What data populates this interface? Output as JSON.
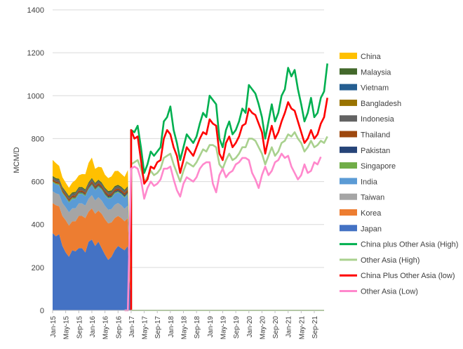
{
  "chart_data": {
    "type": "area+line",
    "title": "",
    "xlabel": "",
    "ylabel": "MCM/D",
    "ylim": [
      0,
      1400
    ],
    "yticks": [
      0,
      200,
      400,
      600,
      800,
      1000,
      1200,
      1400
    ],
    "xtick_labels": [
      "Jan-15",
      "May-15",
      "Sep-15",
      "Jan-16",
      "May-16",
      "Sep-16",
      "Jan-17",
      "May-17",
      "Sep-17",
      "Jan-18",
      "May-18",
      "Sep-18",
      "Jan-19",
      "May-19",
      "Sep-19",
      "Jan-20",
      "May-20",
      "Sep-20",
      "Jan-21",
      "May-21",
      "Sep-21"
    ],
    "area_months": 24,
    "line_months": 84,
    "stacked_areas": [
      {
        "name": "Japan",
        "color": "#4472c4",
        "values": [
          360,
          345,
          355,
          300,
          270,
          250,
          280,
          275,
          290,
          290,
          270,
          320,
          330,
          300,
          320,
          290,
          260,
          235,
          250,
          280,
          300,
          290,
          280,
          300
        ]
      },
      {
        "name": "Korea",
        "color": "#ed7d31",
        "values": [
          140,
          145,
          130,
          140,
          150,
          145,
          135,
          140,
          150,
          150,
          160,
          140,
          145,
          150,
          145,
          160,
          165,
          170,
          160,
          150,
          140,
          140,
          135,
          130
        ]
      },
      {
        "name": "Taiwan",
        "color": "#a5a5a5",
        "values": [
          55,
          55,
          55,
          60,
          60,
          62,
          60,
          60,
          58,
          58,
          58,
          60,
          62,
          62,
          62,
          62,
          62,
          64,
          62,
          62,
          60,
          60,
          58,
          58
        ]
      },
      {
        "name": "India",
        "color": "#5b9bd5",
        "values": [
          42,
          42,
          44,
          46,
          45,
          45,
          44,
          45,
          44,
          45,
          44,
          44,
          46,
          48,
          48,
          50,
          50,
          52,
          52,
          52,
          50,
          50,
          52,
          54
        ]
      },
      {
        "name": "Singapore",
        "color": "#70ad47",
        "values": [
          5,
          5,
          5,
          5,
          5,
          5,
          5,
          5,
          5,
          5,
          5,
          5,
          5,
          5,
          5,
          5,
          5,
          5,
          5,
          5,
          5,
          5,
          5,
          5
        ]
      },
      {
        "name": "Pakistan",
        "color": "#264478",
        "values": [
          0,
          0,
          0,
          0,
          1,
          2,
          2,
          3,
          3,
          3,
          3,
          4,
          4,
          4,
          4,
          4,
          5,
          5,
          5,
          5,
          5,
          6,
          6,
          6
        ]
      },
      {
        "name": "Thailand",
        "color": "#9e480e",
        "values": [
          8,
          8,
          8,
          8,
          8,
          8,
          8,
          8,
          8,
          8,
          8,
          8,
          9,
          9,
          9,
          9,
          9,
          9,
          9,
          9,
          9,
          9,
          10,
          10
        ]
      },
      {
        "name": "Indonesia",
        "color": "#636363",
        "values": [
          10,
          10,
          10,
          10,
          10,
          10,
          10,
          10,
          10,
          10,
          10,
          10,
          10,
          10,
          10,
          10,
          10,
          10,
          10,
          10,
          10,
          10,
          10,
          10
        ]
      },
      {
        "name": "Bangladesh",
        "color": "#997300",
        "values": [
          0,
          0,
          0,
          0,
          0,
          0,
          0,
          0,
          0,
          0,
          0,
          0,
          0,
          0,
          0,
          0,
          0,
          0,
          0,
          0,
          0,
          0,
          0,
          0
        ]
      },
      {
        "name": "Vietnam",
        "color": "#255e91",
        "values": [
          0,
          0,
          0,
          0,
          0,
          0,
          0,
          0,
          0,
          0,
          0,
          0,
          0,
          0,
          0,
          0,
          0,
          0,
          0,
          0,
          0,
          0,
          0,
          0
        ]
      },
      {
        "name": "Malaysia",
        "color": "#43682b",
        "values": [
          6,
          6,
          6,
          6,
          6,
          6,
          6,
          6,
          6,
          6,
          6,
          6,
          6,
          6,
          6,
          6,
          6,
          6,
          6,
          6,
          6,
          6,
          6,
          6
        ]
      },
      {
        "name": "China",
        "color": "#ffc000",
        "values": [
          75,
          70,
          60,
          45,
          40,
          38,
          45,
          55,
          55,
          60,
          70,
          90,
          95,
          65,
          60,
          70,
          60,
          60,
          65,
          70,
          65,
          60,
          60,
          75
        ]
      }
    ],
    "line_series": [
      {
        "name": "China plus Other Asia (High)",
        "color": "#00b050",
        "start_index": 24,
        "values": [
          840,
          830,
          860,
          760,
          640,
          680,
          740,
          720,
          740,
          760,
          880,
          900,
          950,
          840,
          780,
          700,
          760,
          820,
          800,
          780,
          810,
          870,
          920,
          900,
          1000,
          980,
          960,
          800,
          760,
          840,
          880,
          820,
          840,
          880,
          940,
          920,
          1050,
          1030,
          1010,
          960,
          900,
          800,
          880,
          960,
          880,
          920,
          1000,
          1030,
          1130,
          1090,
          1120,
          1030,
          960,
          880,
          920,
          990,
          900,
          920,
          990,
          1020,
          1150
        ]
      },
      {
        "name": "Other Asia (High)",
        "color": "#a9d18e",
        "start_index": 24,
        "values": [
          680,
          690,
          700,
          660,
          600,
          620,
          650,
          630,
          640,
          660,
          710,
          720,
          730,
          680,
          640,
          600,
          650,
          690,
          680,
          670,
          690,
          720,
          750,
          740,
          770,
          770,
          760,
          680,
          660,
          700,
          730,
          700,
          710,
          730,
          760,
          760,
          800,
          800,
          790,
          760,
          730,
          680,
          720,
          760,
          720,
          740,
          780,
          790,
          820,
          810,
          830,
          800,
          780,
          740,
          760,
          790,
          760,
          770,
          790,
          780,
          810
        ]
      },
      {
        "name": "China Plus Other Asia (low)",
        "color": "#ff0000",
        "start_index": 24,
        "values": [
          840,
          800,
          810,
          700,
          590,
          610,
          670,
          660,
          690,
          700,
          800,
          840,
          820,
          760,
          720,
          640,
          700,
          760,
          740,
          720,
          760,
          800,
          830,
          820,
          890,
          870,
          860,
          730,
          700,
          780,
          810,
          760,
          780,
          810,
          860,
          870,
          940,
          920,
          910,
          870,
          830,
          730,
          800,
          860,
          800,
          830,
          880,
          920,
          970,
          940,
          930,
          880,
          830,
          780,
          800,
          840,
          800,
          820,
          870,
          900,
          990
        ]
      },
      {
        "name": "Other Asia (Low)",
        "color": "#ff88cc",
        "start_index": 22,
        "values": [
          0,
          0,
          660,
          670,
          660,
          610,
          520,
          570,
          600,
          580,
          590,
          610,
          660,
          660,
          670,
          610,
          560,
          530,
          590,
          620,
          610,
          600,
          620,
          660,
          680,
          690,
          690,
          590,
          550,
          630,
          660,
          620,
          640,
          650,
          680,
          690,
          710,
          710,
          700,
          640,
          610,
          570,
          630,
          670,
          630,
          650,
          690,
          700,
          730,
          710,
          720,
          670,
          640,
          610,
          630,
          680,
          640,
          650,
          690,
          680,
          715
        ]
      }
    ],
    "legend": [
      {
        "label": "China",
        "color": "#ffc000",
        "kind": "box"
      },
      {
        "label": "Malaysia",
        "color": "#43682b",
        "kind": "box"
      },
      {
        "label": "Vietnam",
        "color": "#255e91",
        "kind": "box"
      },
      {
        "label": "Bangladesh",
        "color": "#997300",
        "kind": "box"
      },
      {
        "label": "Indonesia",
        "color": "#636363",
        "kind": "box"
      },
      {
        "label": "Thailand",
        "color": "#9e480e",
        "kind": "box"
      },
      {
        "label": "Pakistan",
        "color": "#264478",
        "kind": "box"
      },
      {
        "label": "Singapore",
        "color": "#70ad47",
        "kind": "box"
      },
      {
        "label": "India",
        "color": "#5b9bd5",
        "kind": "box"
      },
      {
        "label": "Taiwan",
        "color": "#a5a5a5",
        "kind": "box"
      },
      {
        "label": "Korea",
        "color": "#ed7d31",
        "kind": "box"
      },
      {
        "label": "Japan",
        "color": "#4472c4",
        "kind": "box"
      },
      {
        "label": "China plus Other Asia (High)",
        "color": "#00b050",
        "kind": "line"
      },
      {
        "label": "Other Asia (High)",
        "color": "#a9d18e",
        "kind": "line"
      },
      {
        "label": "China Plus Other Asia (low)",
        "color": "#ff0000",
        "kind": "line"
      },
      {
        "label": "Other Asia (Low)",
        "color": "#ff88cc",
        "kind": "line"
      }
    ],
    "legend_position": "right"
  }
}
